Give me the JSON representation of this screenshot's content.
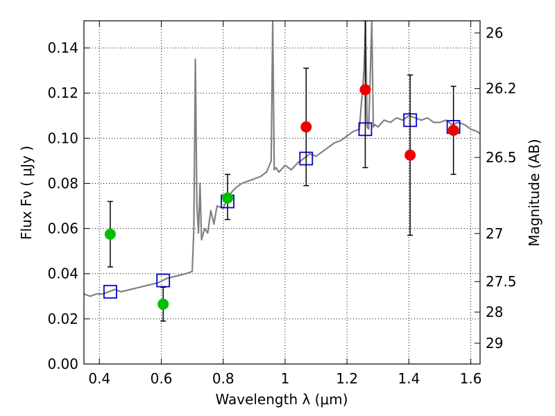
{
  "chart_data": {
    "type": "scatter",
    "title": "",
    "xlabel": "Wavelength  λ (μm)",
    "ylabel": "Flux  Fν  ( μJy )",
    "ylabel_right": "Magnitude (AB)",
    "xlim": [
      0.35,
      1.63
    ],
    "ylim": [
      0.0,
      0.152
    ],
    "grid": true,
    "x_ticks": [
      0.4,
      0.6,
      0.8,
      1.0,
      1.2,
      1.4,
      1.6
    ],
    "x_tick_labels": [
      "0.4",
      "0.6",
      "0.8",
      "1",
      "1.2",
      "1.4",
      "1.6"
    ],
    "y_ticks": [
      0.0,
      0.02,
      0.04,
      0.06,
      0.08,
      0.1,
      0.12,
      0.14
    ],
    "y_tick_labels": [
      "0.00",
      "0.02",
      "0.04",
      "0.06",
      "0.08",
      "0.10",
      "0.12",
      "0.14"
    ],
    "right_ticks": [
      {
        "flux": 0.1466,
        "label": "26"
      },
      {
        "flux": 0.122,
        "label": "26.2"
      },
      {
        "flux": 0.0915,
        "label": "26.5"
      },
      {
        "flux": 0.0578,
        "label": "27"
      },
      {
        "flux": 0.0365,
        "label": "27.5"
      },
      {
        "flux": 0.023,
        "label": "28"
      },
      {
        "flux": 0.0092,
        "label": "29"
      }
    ],
    "colors": {
      "model": "#808080",
      "model_points": "#0000cc",
      "green_points": "#00c000",
      "red_points": "#ee0000",
      "errorbars": "#000000"
    },
    "series": [
      {
        "name": "model_spectrum",
        "kind": "line",
        "x": [
          0.35,
          0.37,
          0.39,
          0.41,
          0.43,
          0.45,
          0.47,
          0.5,
          0.53,
          0.56,
          0.59,
          0.62,
          0.65,
          0.68,
          0.7,
          0.705,
          0.71,
          0.715,
          0.72,
          0.725,
          0.73,
          0.74,
          0.75,
          0.76,
          0.77,
          0.78,
          0.8,
          0.82,
          0.84,
          0.86,
          0.88,
          0.9,
          0.92,
          0.94,
          0.955,
          0.96,
          0.965,
          0.97,
          0.98,
          1.0,
          1.02,
          1.04,
          1.06,
          1.08,
          1.1,
          1.12,
          1.14,
          1.16,
          1.18,
          1.2,
          1.22,
          1.24,
          1.255,
          1.26,
          1.265,
          1.27,
          1.28,
          1.285,
          1.29,
          1.3,
          1.32,
          1.34,
          1.36,
          1.38,
          1.4,
          1.42,
          1.44,
          1.46,
          1.48,
          1.5,
          1.52,
          1.54,
          1.56,
          1.58,
          1.6,
          1.62,
          1.63
        ],
        "y": [
          0.031,
          0.03,
          0.031,
          0.031,
          0.032,
          0.033,
          0.032,
          0.033,
          0.034,
          0.035,
          0.036,
          0.038,
          0.039,
          0.04,
          0.041,
          0.06,
          0.135,
          0.07,
          0.058,
          0.08,
          0.055,
          0.06,
          0.058,
          0.068,
          0.062,
          0.07,
          0.069,
          0.075,
          0.078,
          0.08,
          0.081,
          0.082,
          0.083,
          0.085,
          0.09,
          0.152,
          0.086,
          0.087,
          0.085,
          0.088,
          0.086,
          0.089,
          0.091,
          0.093,
          0.092,
          0.094,
          0.096,
          0.098,
          0.099,
          0.101,
          0.103,
          0.104,
          0.13,
          0.152,
          0.105,
          0.104,
          0.152,
          0.105,
          0.106,
          0.105,
          0.108,
          0.107,
          0.109,
          0.108,
          0.11,
          0.109,
          0.108,
          0.109,
          0.107,
          0.107,
          0.108,
          0.106,
          0.107,
          0.106,
          0.104,
          0.103,
          0.102
        ]
      },
      {
        "name": "model_photometry",
        "kind": "open-square",
        "x": [
          0.435,
          0.606,
          0.814,
          1.068,
          1.259,
          1.404,
          1.544
        ],
        "y": [
          0.032,
          0.037,
          0.072,
          0.091,
          0.104,
          0.108,
          0.105
        ]
      },
      {
        "name": "observed_green",
        "kind": "filled-circle",
        "x": [
          0.435,
          0.606,
          0.814
        ],
        "y": [
          0.0575,
          0.0265,
          0.0735
        ],
        "yerr_low": [
          0.043,
          0.019,
          0.064
        ],
        "yerr_high": [
          0.072,
          0.034,
          0.084
        ]
      },
      {
        "name": "observed_red",
        "kind": "filled-circle",
        "x": [
          1.068,
          1.259,
          1.404,
          1.544
        ],
        "y": [
          0.105,
          0.1215,
          0.0925,
          0.1035
        ],
        "yerr_low": [
          0.079,
          0.087,
          0.057,
          0.084
        ],
        "yerr_high": [
          0.131,
          0.152,
          0.128,
          0.123
        ]
      }
    ]
  }
}
